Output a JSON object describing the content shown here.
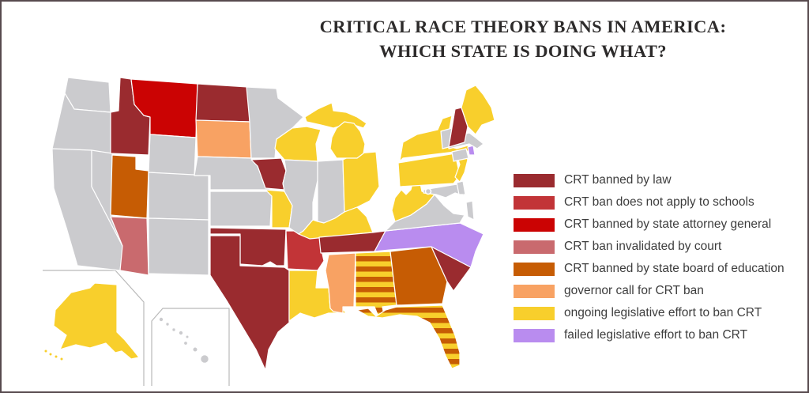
{
  "title": {
    "line1": "CRITICAL RACE THEORY BANS IN AMERICA:",
    "line2": "WHICH STATE IS DOING WHAT?"
  },
  "legend": {
    "items": [
      {
        "label": "CRT banned by law",
        "color_key": "banned_by_law"
      },
      {
        "label": "CRT ban does not apply to schools",
        "color_key": "ban_not_apply_schools"
      },
      {
        "label": "CRT banned by state attorney general",
        "color_key": "banned_attorney_general"
      },
      {
        "label": "CRT ban invalidated by court",
        "color_key": "ban_invalidated_court"
      },
      {
        "label": "CRT banned by state board of education",
        "color_key": "banned_board_education"
      },
      {
        "label": "governor call for CRT ban",
        "color_key": "governor_call"
      },
      {
        "label": "ongoing legislative effort to ban CRT",
        "color_key": "ongoing_legislative"
      },
      {
        "label": "failed legislative effort to ban CRT",
        "color_key": "failed_legislative"
      }
    ]
  },
  "map": {
    "colors": {
      "no_action": "#cbcbce",
      "banned_by_law": "#9a2b2f",
      "ban_not_apply_schools": "#c23437",
      "banned_attorney_general": "#cb0303",
      "ban_invalidated_court": "#c96a6e",
      "banned_board_education": "#c65c04",
      "governor_call": "#f8a263",
      "ongoing_legislative": "#f8cf2c",
      "failed_legislative": "#b98cef"
    },
    "stripe_keys": [
      "ongoing_legislative",
      "banned_board_education"
    ],
    "states": {
      "WA": "no_action",
      "OR": "no_action",
      "CA": "no_action",
      "NV": "no_action",
      "ID": "banned_by_law",
      "MT": "banned_attorney_general",
      "WY": "no_action",
      "UT": "banned_board_education",
      "AZ": "ban_invalidated_court",
      "NM": "no_action",
      "CO": "no_action",
      "ND": "banned_by_law",
      "SD": "governor_call",
      "NE": "no_action",
      "KS": "no_action",
      "OK": "banned_by_law",
      "TX": "banned_by_law",
      "MN": "no_action",
      "IA": "banned_by_law",
      "MO": "ongoing_legislative",
      "AR": "ban_not_apply_schools",
      "LA": "ongoing_legislative",
      "WI": "ongoing_legislative",
      "IL": "no_action",
      "MI": "ongoing_legislative",
      "IN": "no_action",
      "OH": "ongoing_legislative",
      "KY": "ongoing_legislative",
      "TN": "banned_by_law",
      "MS": "governor_call",
      "AL": "striped",
      "GA": "banned_board_education",
      "FL": "striped",
      "SC": "banned_by_law",
      "NC": "failed_legislative",
      "VA": "no_action",
      "WV": "ongoing_legislative",
      "MD": "no_action",
      "DE": "no_action",
      "PA": "ongoing_legislative",
      "NJ": "ongoing_legislative",
      "NY": "ongoing_legislative",
      "CT": "no_action",
      "RI": "failed_legislative",
      "MA": "no_action",
      "VT": "no_action",
      "NH": "banned_by_law",
      "ME": "ongoing_legislative",
      "AK": "ongoing_legislative",
      "HI": "no_action",
      "DC": "no_action",
      "ES": "no_action"
    }
  }
}
